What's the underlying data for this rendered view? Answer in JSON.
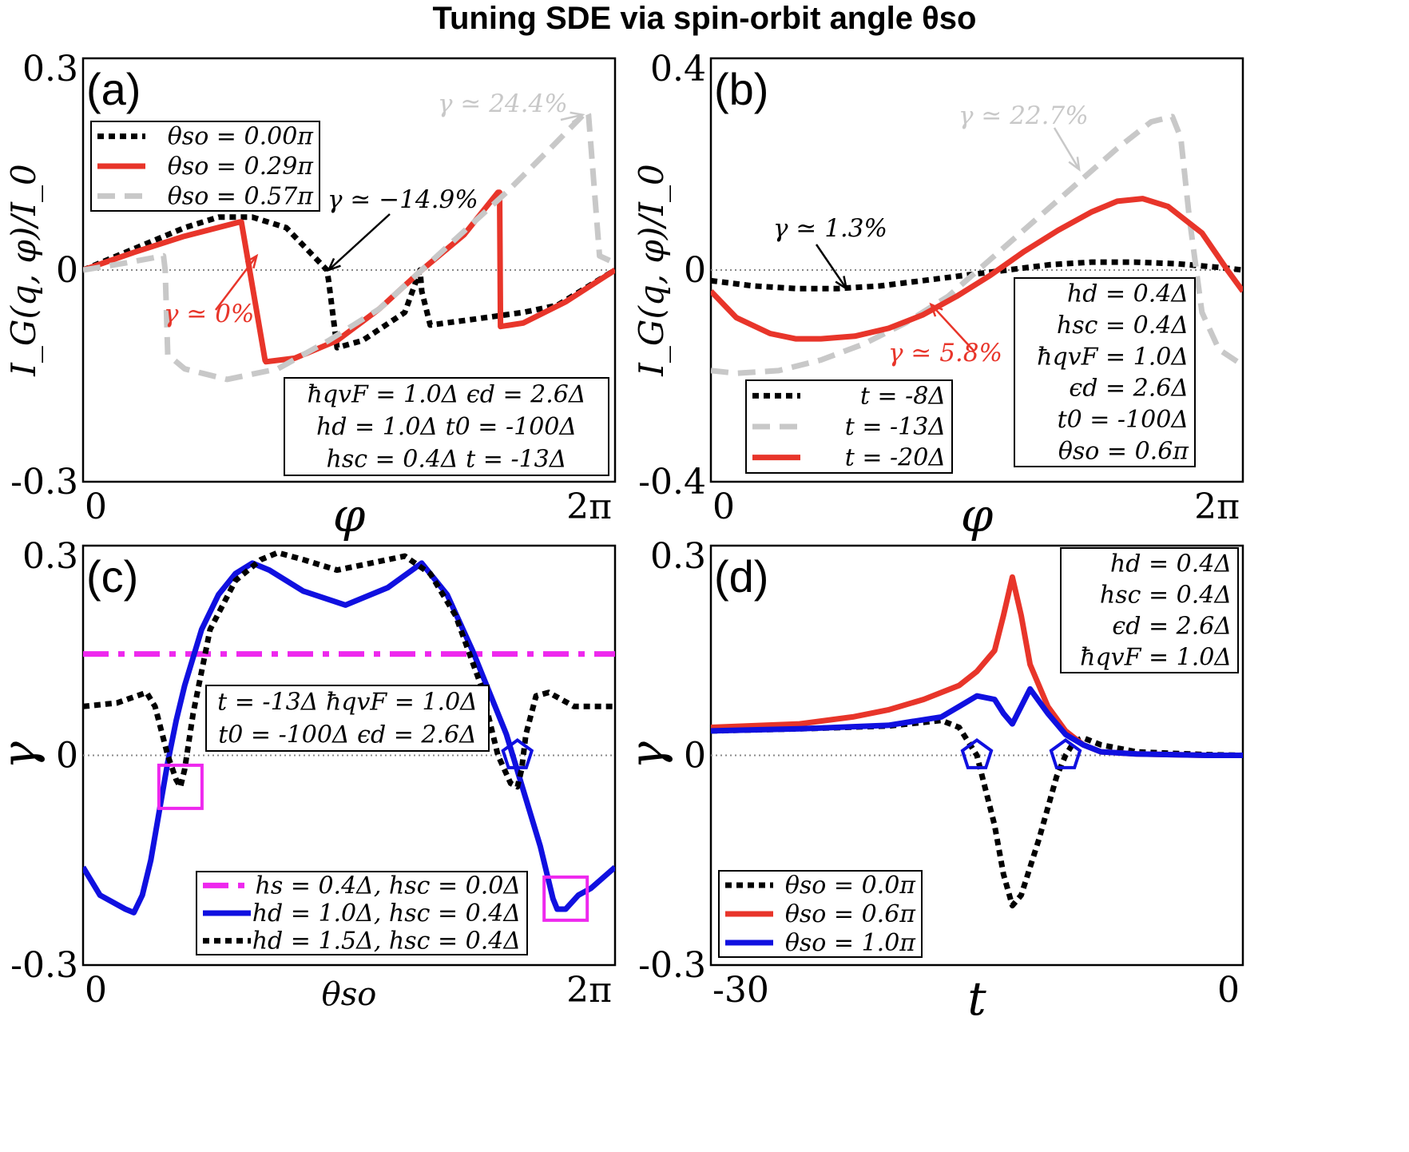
{
  "title": "Tuning SDE via spin-orbit angle θso",
  "colors": {
    "black": "#000000",
    "red": "#e8352a",
    "gray": "#c8c8c8",
    "blue": "#1010e0",
    "magenta": "#ee28ee"
  },
  "chart_data": [
    {
      "id": "a",
      "type": "line",
      "panel_label": "(a)",
      "xlabel": "φ",
      "ylabel": "I_G(q, φ)/I_0",
      "xlim": [
        0,
        6.2832
      ],
      "ylim": [
        -0.3,
        0.3
      ],
      "xtick_labels": [
        "0",
        "2π"
      ],
      "ytick_labels": [
        "0.3",
        "0",
        "-0.3"
      ],
      "series": [
        {
          "name": "θso = 0.00π",
          "style": "dotted",
          "color": "black",
          "x": [
            0,
            0.6,
            1.2,
            1.6,
            2.0,
            2.4,
            2.88,
            2.9,
            3.0,
            3.3,
            3.8,
            3.98,
            4.0,
            4.1,
            4.6,
            5.2,
            5.6,
            6.2832
          ],
          "y": [
            0.0,
            0.03,
            0.06,
            0.075,
            0.075,
            0.06,
            0.0,
            -0.015,
            -0.11,
            -0.1,
            -0.06,
            -0.0,
            -0.03,
            -0.078,
            -0.07,
            -0.06,
            -0.05,
            -0.0
          ]
        },
        {
          "name": "θso = 0.29π",
          "style": "solid",
          "color": "red",
          "x": [
            0,
            0.6,
            1.2,
            1.85,
            1.87,
            2.15,
            2.16,
            2.5,
            3.0,
            3.5,
            4.0,
            4.5,
            4.9,
            4.92,
            4.93,
            5.2,
            5.7,
            6.2832
          ],
          "y": [
            0.0,
            0.025,
            0.048,
            0.068,
            0.068,
            -0.128,
            -0.13,
            -0.125,
            -0.1,
            -0.055,
            0.0,
            0.05,
            0.11,
            0.11,
            -0.08,
            -0.075,
            -0.045,
            -0.0
          ]
        },
        {
          "name": "θso = 0.57π",
          "style": "dashed",
          "color": "gray",
          "x": [
            0,
            0.5,
            0.95,
            0.97,
            1.0,
            1.2,
            1.7,
            2.3,
            2.9,
            3.5,
            4.0,
            4.5,
            5.0,
            5.5,
            5.95,
            5.97,
            6.1,
            6.2832
          ],
          "y": [
            0.0,
            0.01,
            0.02,
            0.0,
            -0.12,
            -0.14,
            -0.155,
            -0.14,
            -0.1,
            -0.055,
            0.0,
            0.055,
            0.11,
            0.17,
            0.225,
            0.22,
            0.02,
            0.01
          ]
        }
      ],
      "legend": {
        "placement": "top-left",
        "entries": [
          "θso = 0.00π",
          "θso = 0.29π",
          "θso = 0.57π"
        ]
      },
      "annotations": [
        {
          "text": "γ ≃ 24.4%",
          "color": "gray",
          "arrow_to": [
            5.9,
            0.22
          ]
        },
        {
          "text": "γ ≃ −14.9%",
          "color": "black",
          "arrow_to": [
            2.9,
            0.0
          ]
        },
        {
          "text": "γ ≃ 0%",
          "color": "red",
          "arrow_to": [
            2.05,
            0.02
          ]
        }
      ],
      "param_box": {
        "placement": "bottom-right",
        "lines": [
          "ħqvF = 1.0Δ  ϵd = 2.6Δ",
          "hd = 1.0Δ   t0 = -100Δ",
          "hsc = 0.4Δ     t = -13Δ"
        ]
      }
    },
    {
      "id": "b",
      "type": "line",
      "panel_label": "(b)",
      "xlabel": "φ",
      "ylabel": "I_G(q, φ)/I_0",
      "xlim": [
        0,
        6.2832
      ],
      "ylim": [
        -0.4,
        0.4
      ],
      "xtick_labels": [
        "0",
        "2π"
      ],
      "ytick_labels": [
        "0.4",
        "0",
        "-0.4"
      ],
      "series": [
        {
          "name": "t = -8Δ",
          "style": "dotted",
          "color": "black",
          "x": [
            0,
            0.5,
            1.0,
            1.5,
            2.0,
            2.5,
            3.0,
            3.5,
            4.0,
            4.5,
            5.0,
            5.5,
            6.0,
            6.2832
          ],
          "y": [
            -0.02,
            -0.03,
            -0.035,
            -0.035,
            -0.03,
            -0.02,
            -0.01,
            0.0,
            0.01,
            0.015,
            0.015,
            0.012,
            0.005,
            0.0
          ]
        },
        {
          "name": "t = -13Δ",
          "style": "dashed",
          "color": "gray",
          "x": [
            0,
            0.3,
            0.8,
            1.3,
            1.8,
            2.3,
            2.8,
            3.3,
            3.8,
            4.3,
            4.8,
            5.2,
            5.45,
            5.55,
            5.65,
            5.8,
            6.0,
            6.2832
          ],
          "y": [
            -0.19,
            -0.195,
            -0.19,
            -0.17,
            -0.14,
            -0.1,
            -0.05,
            0.02,
            0.09,
            0.16,
            0.23,
            0.28,
            0.29,
            0.25,
            0.1,
            -0.08,
            -0.15,
            -0.18
          ]
        },
        {
          "name": "t = -20Δ",
          "style": "solid",
          "color": "red",
          "x": [
            0,
            0.3,
            0.7,
            1.0,
            1.3,
            1.7,
            2.1,
            2.5,
            2.9,
            3.3,
            3.7,
            4.1,
            4.5,
            4.8,
            5.1,
            5.4,
            5.8,
            6.1,
            6.2832
          ],
          "y": [
            -0.04,
            -0.09,
            -0.12,
            -0.13,
            -0.13,
            -0.125,
            -0.11,
            -0.085,
            -0.05,
            -0.01,
            0.035,
            0.075,
            0.11,
            0.13,
            0.135,
            0.12,
            0.07,
            0.0,
            -0.04
          ]
        }
      ],
      "legend": {
        "placement": "bottom-left",
        "entries": [
          "t = -8Δ",
          "t = -13Δ",
          "t = -20Δ"
        ]
      },
      "annotations": [
        {
          "text": "γ ≃ 22.7%",
          "color": "gray",
          "arrow_to": [
            4.35,
            0.19
          ]
        },
        {
          "text": "γ ≃ 1.3%",
          "color": "black",
          "arrow_to": [
            1.6,
            -0.035
          ]
        },
        {
          "text": "γ ≃ 5.8%",
          "color": "red",
          "arrow_to": [
            2.6,
            -0.065
          ]
        }
      ],
      "param_box": {
        "placement": "bottom-right",
        "lines": [
          "hd = 0.4Δ",
          "hsc = 0.4Δ",
          "ħqvF = 1.0Δ",
          "ϵd = 2.6Δ",
          "t0 = -100Δ",
          "θso = 0.6π"
        ]
      }
    },
    {
      "id": "c",
      "type": "line",
      "panel_label": "(c)",
      "xlabel": "θso",
      "ylabel": "γ",
      "xlim": [
        0,
        6.2832
      ],
      "ylim": [
        -0.3,
        0.3
      ],
      "xtick_labels": [
        "0",
        "2π"
      ],
      "ytick_labels": [
        "0.3",
        "0",
        "-0.3"
      ],
      "series": [
        {
          "name": "hs = 0.4Δ, hsc = 0.0Δ",
          "style": "dashdot",
          "color": "magenta",
          "x": [
            0,
            6.2832
          ],
          "y": [
            0.145,
            0.145
          ]
        },
        {
          "name": "hd = 1.0Δ, hsc = 0.4Δ",
          "style": "solid",
          "color": "blue",
          "x": [
            0,
            0.2,
            0.5,
            0.6,
            0.7,
            0.8,
            0.9,
            1.0,
            1.1,
            1.2,
            1.4,
            1.6,
            1.8,
            2.0,
            2.2,
            2.6,
            3.1,
            3.6,
            4.0,
            4.3,
            4.6,
            4.8,
            5.0,
            5.2,
            5.4,
            5.55,
            5.6,
            5.7,
            5.85,
            6.0,
            6.2832
          ],
          "y": [
            -0.16,
            -0.2,
            -0.22,
            -0.225,
            -0.2,
            -0.15,
            -0.08,
            -0.01,
            0.05,
            0.1,
            0.18,
            0.23,
            0.26,
            0.275,
            0.265,
            0.235,
            0.215,
            0.24,
            0.275,
            0.23,
            0.15,
            0.09,
            0.03,
            -0.05,
            -0.13,
            -0.205,
            -0.22,
            -0.22,
            -0.2,
            -0.19,
            -0.16
          ]
        },
        {
          "name": "hd = 1.5Δ, hsc = 0.4Δ",
          "style": "dotted",
          "color": "black",
          "x": [
            0,
            0.4,
            0.75,
            0.85,
            1.0,
            1.1,
            1.15,
            1.2,
            1.3,
            1.5,
            1.8,
            2.1,
            2.3,
            2.6,
            3.0,
            3.4,
            3.8,
            4.1,
            4.4,
            4.7,
            4.9,
            5.05,
            5.13,
            5.18,
            5.23,
            5.35,
            5.5,
            5.8,
            6.2832
          ],
          "y": [
            0.07,
            0.075,
            0.09,
            0.07,
            0.0,
            -0.035,
            -0.045,
            -0.02,
            0.06,
            0.18,
            0.25,
            0.28,
            0.29,
            0.28,
            0.265,
            0.275,
            0.285,
            0.26,
            0.2,
            0.1,
            0.0,
            -0.04,
            -0.045,
            -0.02,
            0.03,
            0.085,
            0.09,
            0.07,
            0.07
          ]
        }
      ],
      "legend": {
        "placement": "bottom-right",
        "entries": [
          "hs = 0.4Δ, hsc = 0.0Δ",
          "hd = 1.0Δ, hsc = 0.4Δ",
          "hd = 1.5Δ, hsc = 0.4Δ"
        ]
      },
      "markers": [
        {
          "shape": "square",
          "color": "magenta",
          "at": [
            1.15,
            -0.045
          ]
        },
        {
          "shape": "square",
          "color": "magenta",
          "at": [
            5.7,
            -0.205
          ]
        },
        {
          "shape": "pentagon",
          "color": "blue",
          "at": [
            5.13,
            0.0
          ]
        }
      ],
      "param_box": {
        "placement": "center",
        "lines": [
          "t = -13Δ ħqvF = 1.0Δ",
          "t0 = -100Δ   ϵd = 2.6Δ"
        ]
      }
    },
    {
      "id": "d",
      "type": "line",
      "panel_label": "(d)",
      "xlabel": "t",
      "ylabel": "γ",
      "xlim": [
        -30,
        0
      ],
      "ylim": [
        -0.3,
        0.3
      ],
      "xtick_labels": [
        "-30",
        "0"
      ],
      "ytick_labels": [
        "0.3",
        "0",
        "-0.3"
      ],
      "series": [
        {
          "name": "θso = 0.0π",
          "style": "dotted",
          "color": "black",
          "x": [
            -30,
            -25,
            -20,
            -17,
            -16,
            -15.5,
            -15,
            -14,
            -13.5,
            -13,
            -12.5,
            -11.5,
            -10.5,
            -10,
            -9.5,
            -9,
            -8,
            -6,
            -4,
            -2,
            0
          ],
          "y": [
            0.035,
            0.038,
            0.042,
            0.05,
            0.04,
            0.02,
            -0.0,
            -0.1,
            -0.17,
            -0.215,
            -0.2,
            -0.12,
            -0.03,
            -0.0,
            0.02,
            0.025,
            0.015,
            0.005,
            0.003,
            0.001,
            0.0
          ]
        },
        {
          "name": "θso = 0.6π",
          "style": "solid",
          "color": "red",
          "x": [
            -30,
            -25,
            -22,
            -20,
            -18,
            -16,
            -15,
            -14,
            -13.5,
            -13,
            -12.5,
            -12,
            -11,
            -10,
            -9,
            -8,
            -6,
            -4,
            -2,
            0
          ],
          "y": [
            0.04,
            0.045,
            0.055,
            0.065,
            0.08,
            0.1,
            0.12,
            0.15,
            0.2,
            0.255,
            0.2,
            0.13,
            0.07,
            0.035,
            0.015,
            0.005,
            0.002,
            0.001,
            0.0,
            0.0
          ]
        },
        {
          "name": "θso = 1.0π",
          "style": "solid",
          "color": "blue",
          "x": [
            -30,
            -25,
            -20,
            -17,
            -16,
            -15,
            -14,
            -13.5,
            -13,
            -12.5,
            -12,
            -11,
            -10,
            -9,
            -8,
            -6,
            -4,
            -2,
            0
          ],
          "y": [
            0.035,
            0.038,
            0.043,
            0.055,
            0.07,
            0.085,
            0.08,
            0.06,
            0.045,
            0.07,
            0.095,
            0.06,
            0.03,
            0.015,
            0.005,
            0.002,
            0.001,
            0.0,
            0.0
          ]
        }
      ],
      "legend": {
        "placement": "bottom-left",
        "entries": [
          "θso = 0.0π",
          "θso = 0.6π",
          "θso = 1.0π"
        ]
      },
      "markers": [
        {
          "shape": "pentagon",
          "color": "blue",
          "at": [
            -15,
            0.0
          ]
        },
        {
          "shape": "pentagon",
          "color": "blue",
          "at": [
            -10,
            0.0
          ]
        }
      ],
      "param_box": {
        "placement": "top-right",
        "lines": [
          "hd = 0.4Δ",
          "hsc = 0.4Δ",
          "ϵd = 2.6Δ",
          "ħqvF = 1.0Δ"
        ]
      }
    }
  ]
}
